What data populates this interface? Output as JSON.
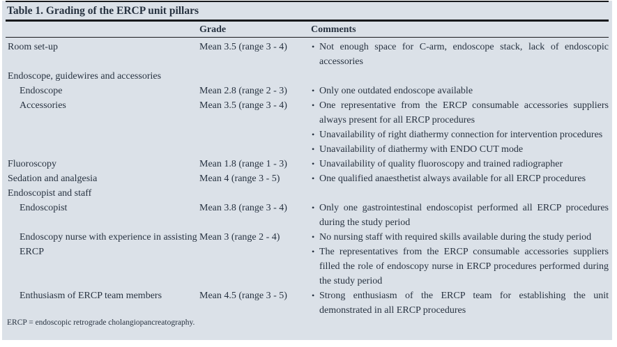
{
  "table": {
    "title": "Table 1. Grading of the ERCP unit pillars",
    "columns": [
      "",
      "Grade",
      "Comments"
    ],
    "rows": [
      {
        "pillar": "Room set-up",
        "indent": false,
        "grade": "Mean 3.5 (range 3 - 4)",
        "comments": [
          "Not enough space for C-arm, endoscope stack, lack of endoscopic accessories"
        ]
      },
      {
        "pillar": "Endoscope, guidewires and accessories",
        "indent": false,
        "grade": "",
        "comments": []
      },
      {
        "pillar": "Endoscope",
        "indent": true,
        "grade": "Mean 2.8 (range 2 - 3)",
        "comments": [
          "Only one outdated endoscope available"
        ]
      },
      {
        "pillar": "Accessories",
        "indent": true,
        "grade": "Mean 3.5 (range 3 - 4)",
        "comments": [
          "One representative from the ERCP consumable accessories suppliers always present for all ERCP procedures",
          "Unavailability of right diathermy connection for intervention procedures",
          "Unavailability of diathermy with ENDO CUT mode"
        ]
      },
      {
        "pillar": "Fluoroscopy",
        "indent": false,
        "grade": "Mean 1.8 (range 1 - 3)",
        "comments": [
          "Unavailability of quality fluoroscopy and trained radiographer"
        ]
      },
      {
        "pillar": "Sedation and analgesia",
        "indent": false,
        "grade": "Mean 4 (range 3 - 5)",
        "comments": [
          "One qualified anaesthetist always available for all ERCP procedures"
        ]
      },
      {
        "pillar": "Endoscopist and staff",
        "indent": false,
        "grade": "",
        "comments": []
      },
      {
        "pillar": "Endoscopist",
        "indent": true,
        "grade": "Mean 3.8 (range 3 - 4)",
        "comments": [
          "Only one gastrointestinal endoscopist performed all ERCP procedures during the study period"
        ]
      },
      {
        "pillar": "Endoscopy nurse with experience in assisting ERCP",
        "indent": true,
        "grade": "Mean 3 (range 2 - 4)",
        "comments": [
          "No nursing staff with required skills available during the study period",
          "The representatives from the ERCP consumable accessories suppliers filled the role of endoscopy nurse in ERCP procedures performed during the study period"
        ]
      },
      {
        "pillar": "Enthusiasm of ERCP team members",
        "indent": true,
        "grade": "Mean 4.5 (range 3 - 5)",
        "comments": [
          "Strong enthusiasm of the ERCP team for establishing the unit demonstrated in all ERCP procedures"
        ]
      }
    ],
    "footnote": "ERCP = endoscopic retrograde cholangiopancreatography."
  },
  "colors": {
    "panel_bg": "#dbe1e8",
    "text": "#273240",
    "rule": "#17191c"
  }
}
